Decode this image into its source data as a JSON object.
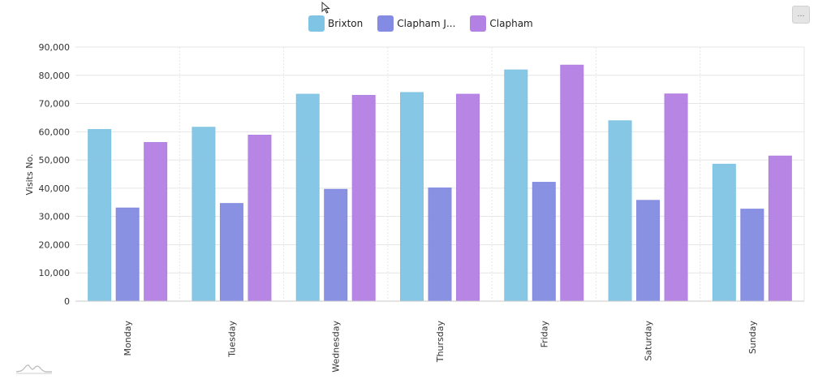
{
  "legend": {
    "items": [
      {
        "label": "Brixton",
        "color": "#7fc4e4"
      },
      {
        "label": "Clapham J...",
        "color": "#838be2"
      },
      {
        "label": "Clapham",
        "color": "#b380e4"
      }
    ]
  },
  "menu": {
    "label": "…"
  },
  "icons": {
    "cursor": "mouse-cursor-icon",
    "logo": "chart-logo-icon"
  },
  "chart_data": {
    "type": "bar",
    "categories": [
      "Monday",
      "Tuesday",
      "Wednesday",
      "Thursday",
      "Friday",
      "Saturday",
      "Sunday"
    ],
    "series": [
      {
        "name": "Brixton",
        "color": "#7fc4e4",
        "values": [
          60800,
          61600,
          73300,
          73900,
          81900,
          63900,
          48500
        ]
      },
      {
        "name": "Clapham J...",
        "color": "#838be2",
        "values": [
          33000,
          34600,
          39600,
          40100,
          42100,
          35700,
          32600
        ]
      },
      {
        "name": "Clapham",
        "color": "#b380e4",
        "values": [
          56200,
          58800,
          72900,
          73300,
          83600,
          73400,
          51400
        ]
      }
    ],
    "ylabel": "Visits No.",
    "xlabel": "",
    "ylim": [
      0,
      90000
    ],
    "yticks": [
      0,
      10000,
      20000,
      30000,
      40000,
      50000,
      60000,
      70000,
      80000,
      90000
    ],
    "ytick_labels": [
      "0",
      "10,000",
      "20,000",
      "30,000",
      "40,000",
      "50,000",
      "60,000",
      "70,000",
      "80,000",
      "90,000"
    ],
    "grid": true,
    "legend_position": "top-center"
  }
}
